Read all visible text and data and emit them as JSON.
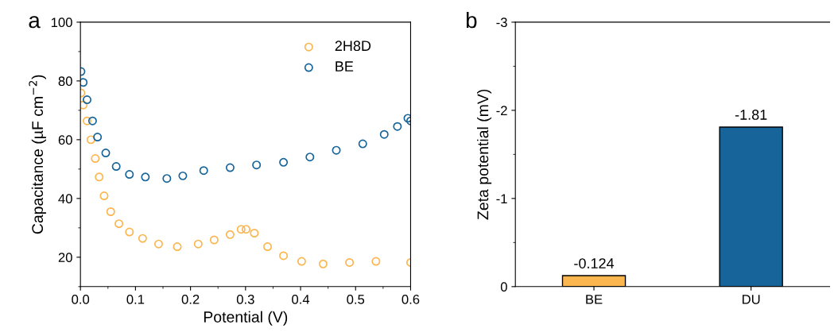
{
  "chart_data": [
    {
      "type": "scatter",
      "xlabel": "Potential (V)",
      "ylabel": "Capacitance (µF cm$^{−2}$)",
      "annotations": [
        "a"
      ],
      "xlim": [
        0,
        0.6
      ],
      "ylim": [
        10,
        100
      ],
      "xticks": [
        {
          "value": 0,
          "label": "0.0"
        },
        0.1,
        0.2,
        0.3,
        0.4,
        0.5,
        0.6
      ],
      "yticks": [
        20,
        40,
        60,
        80,
        100
      ],
      "legend": "top right",
      "marker": "circle",
      "grid": false,
      "series": [
        {
          "name": "2H8D",
          "color": "#fbb64f",
          "x": [
            0.001,
            0.005,
            0.012,
            0.019,
            0.027,
            0.034,
            0.043,
            0.055,
            0.07,
            0.089,
            0.113,
            0.142,
            0.176,
            0.214,
            0.243,
            0.272,
            0.292,
            0.301,
            0.316,
            0.34,
            0.369,
            0.402,
            0.441,
            0.489,
            0.537,
            0.6
          ],
          "values": [
            75.9,
            71.8,
            66.4,
            60,
            53.6,
            47.3,
            40.9,
            35.5,
            31.4,
            28.6,
            26.4,
            24.5,
            23.6,
            24.5,
            25.9,
            27.7,
            29.5,
            29.5,
            28.2,
            23.6,
            20.5,
            18.6,
            17.7,
            18.2,
            18.6,
            18.2
          ]
        },
        {
          "name": "BE",
          "color": "#16649a",
          "x": [
            0.001,
            0.005,
            0.012,
            0.022,
            0.031,
            0.046,
            0.065,
            0.089,
            0.118,
            0.157,
            0.186,
            0.224,
            0.272,
            0.32,
            0.369,
            0.417,
            0.465,
            0.513,
            0.552,
            0.576,
            0.595,
            0.6
          ],
          "values": [
            83.2,
            79.5,
            73.6,
            66.4,
            60.9,
            55.5,
            50.9,
            48.2,
            47.3,
            46.8,
            47.7,
            49.5,
            50.5,
            51.4,
            52.3,
            54.1,
            56.4,
            58.6,
            61.8,
            64.5,
            67.3,
            66.4
          ]
        }
      ]
    },
    {
      "type": "bar",
      "ylabel": "Zeta potential (mV)",
      "annotations": [
        "b"
      ],
      "categories": [
        "BE",
        "DU"
      ],
      "values": [
        -0.124,
        -1.81
      ],
      "colors": [
        "#fbb64f",
        "#16649a"
      ],
      "ylim": [
        0,
        -3
      ],
      "yticks": [
        -3,
        -2,
        -1,
        0
      ],
      "data_labels": true,
      "grid": false
    }
  ]
}
